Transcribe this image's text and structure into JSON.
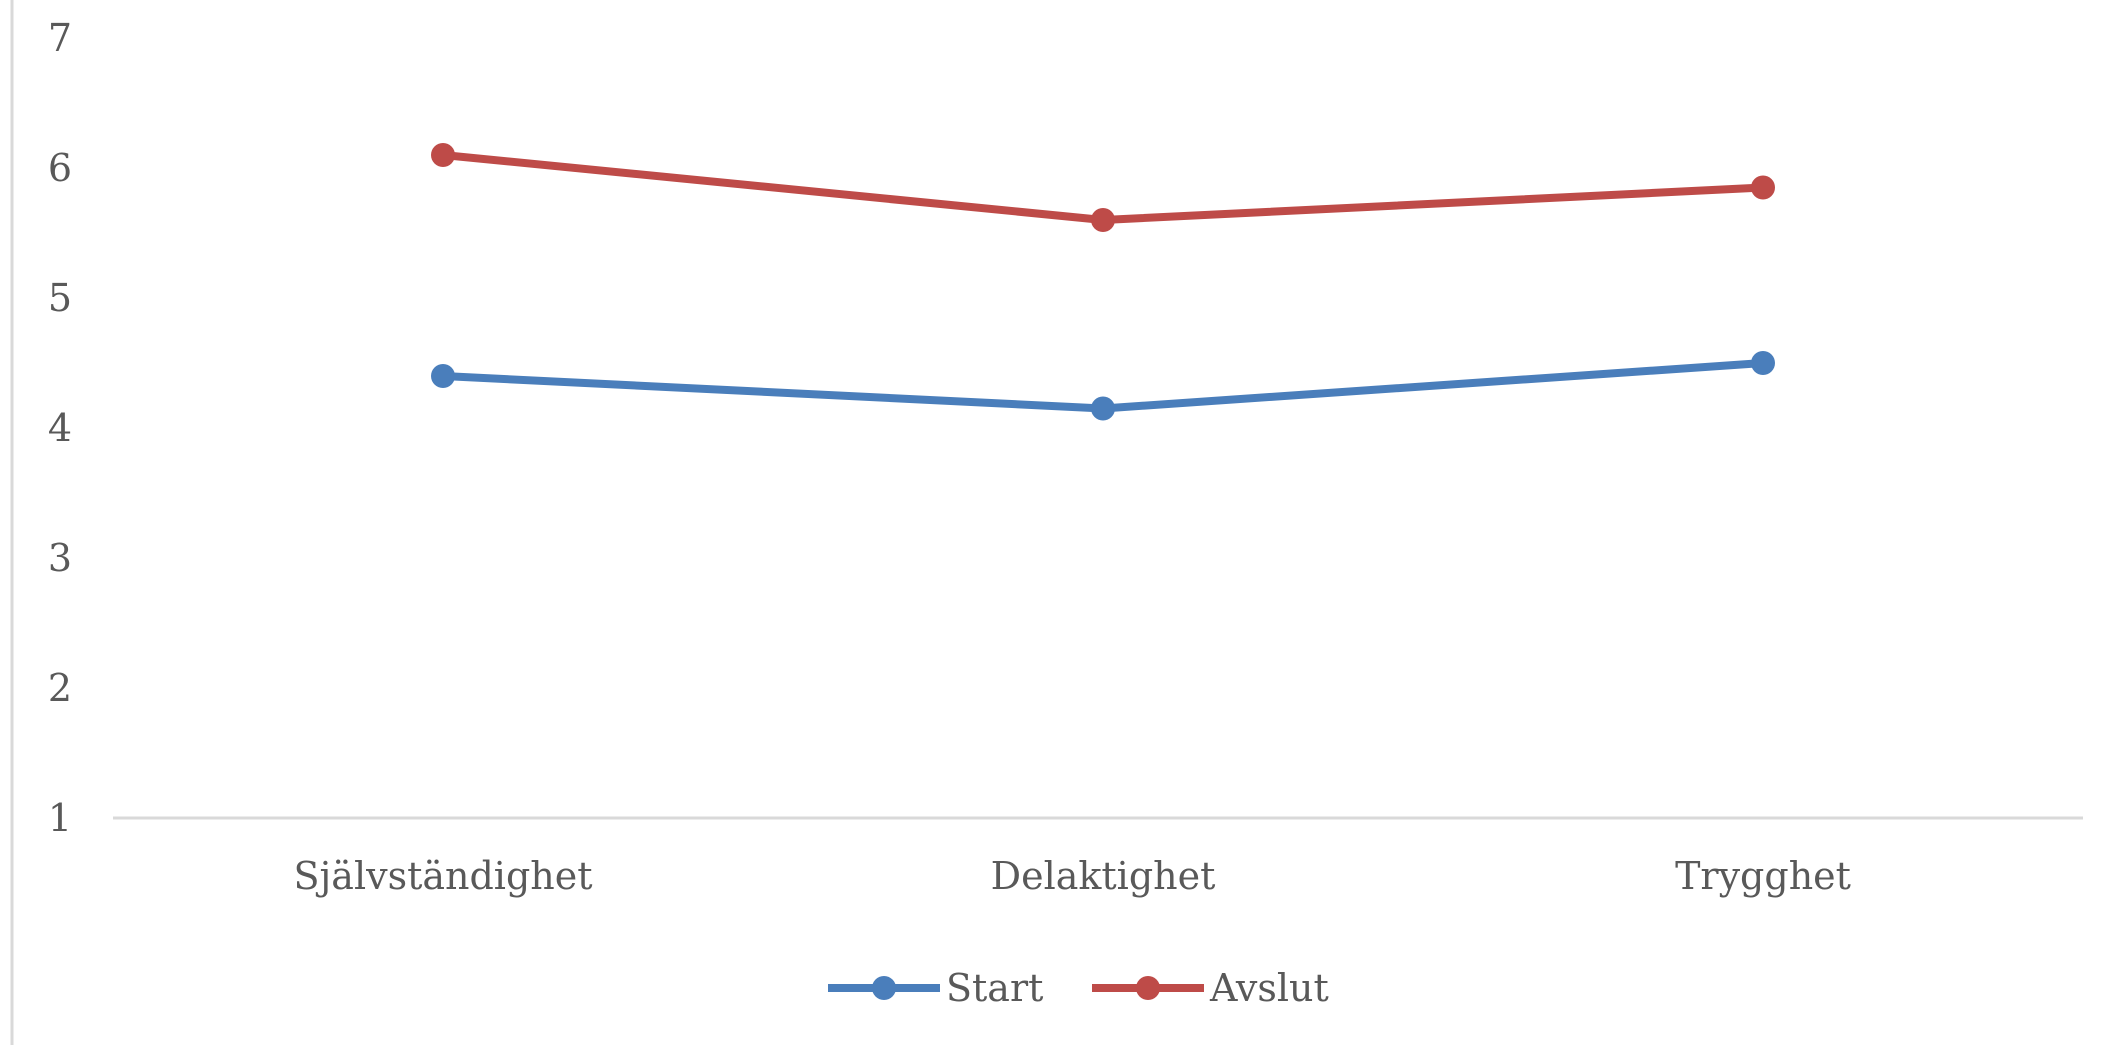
{
  "chart_data": {
    "type": "line",
    "categories": [
      "Självständighet",
      "Delaktighet",
      "Trygghet"
    ],
    "series": [
      {
        "name": "Start",
        "values": [
          4.4,
          4.15,
          4.5
        ],
        "color": "#4a7ebb"
      },
      {
        "name": "Avslut",
        "values": [
          6.1,
          5.6,
          5.85
        ],
        "color": "#be4b48"
      }
    ],
    "yticks": [
      1,
      2,
      3,
      4,
      5,
      6,
      7
    ],
    "ylim": [
      1,
      7
    ],
    "grid": false,
    "legend": "bottom-center"
  }
}
